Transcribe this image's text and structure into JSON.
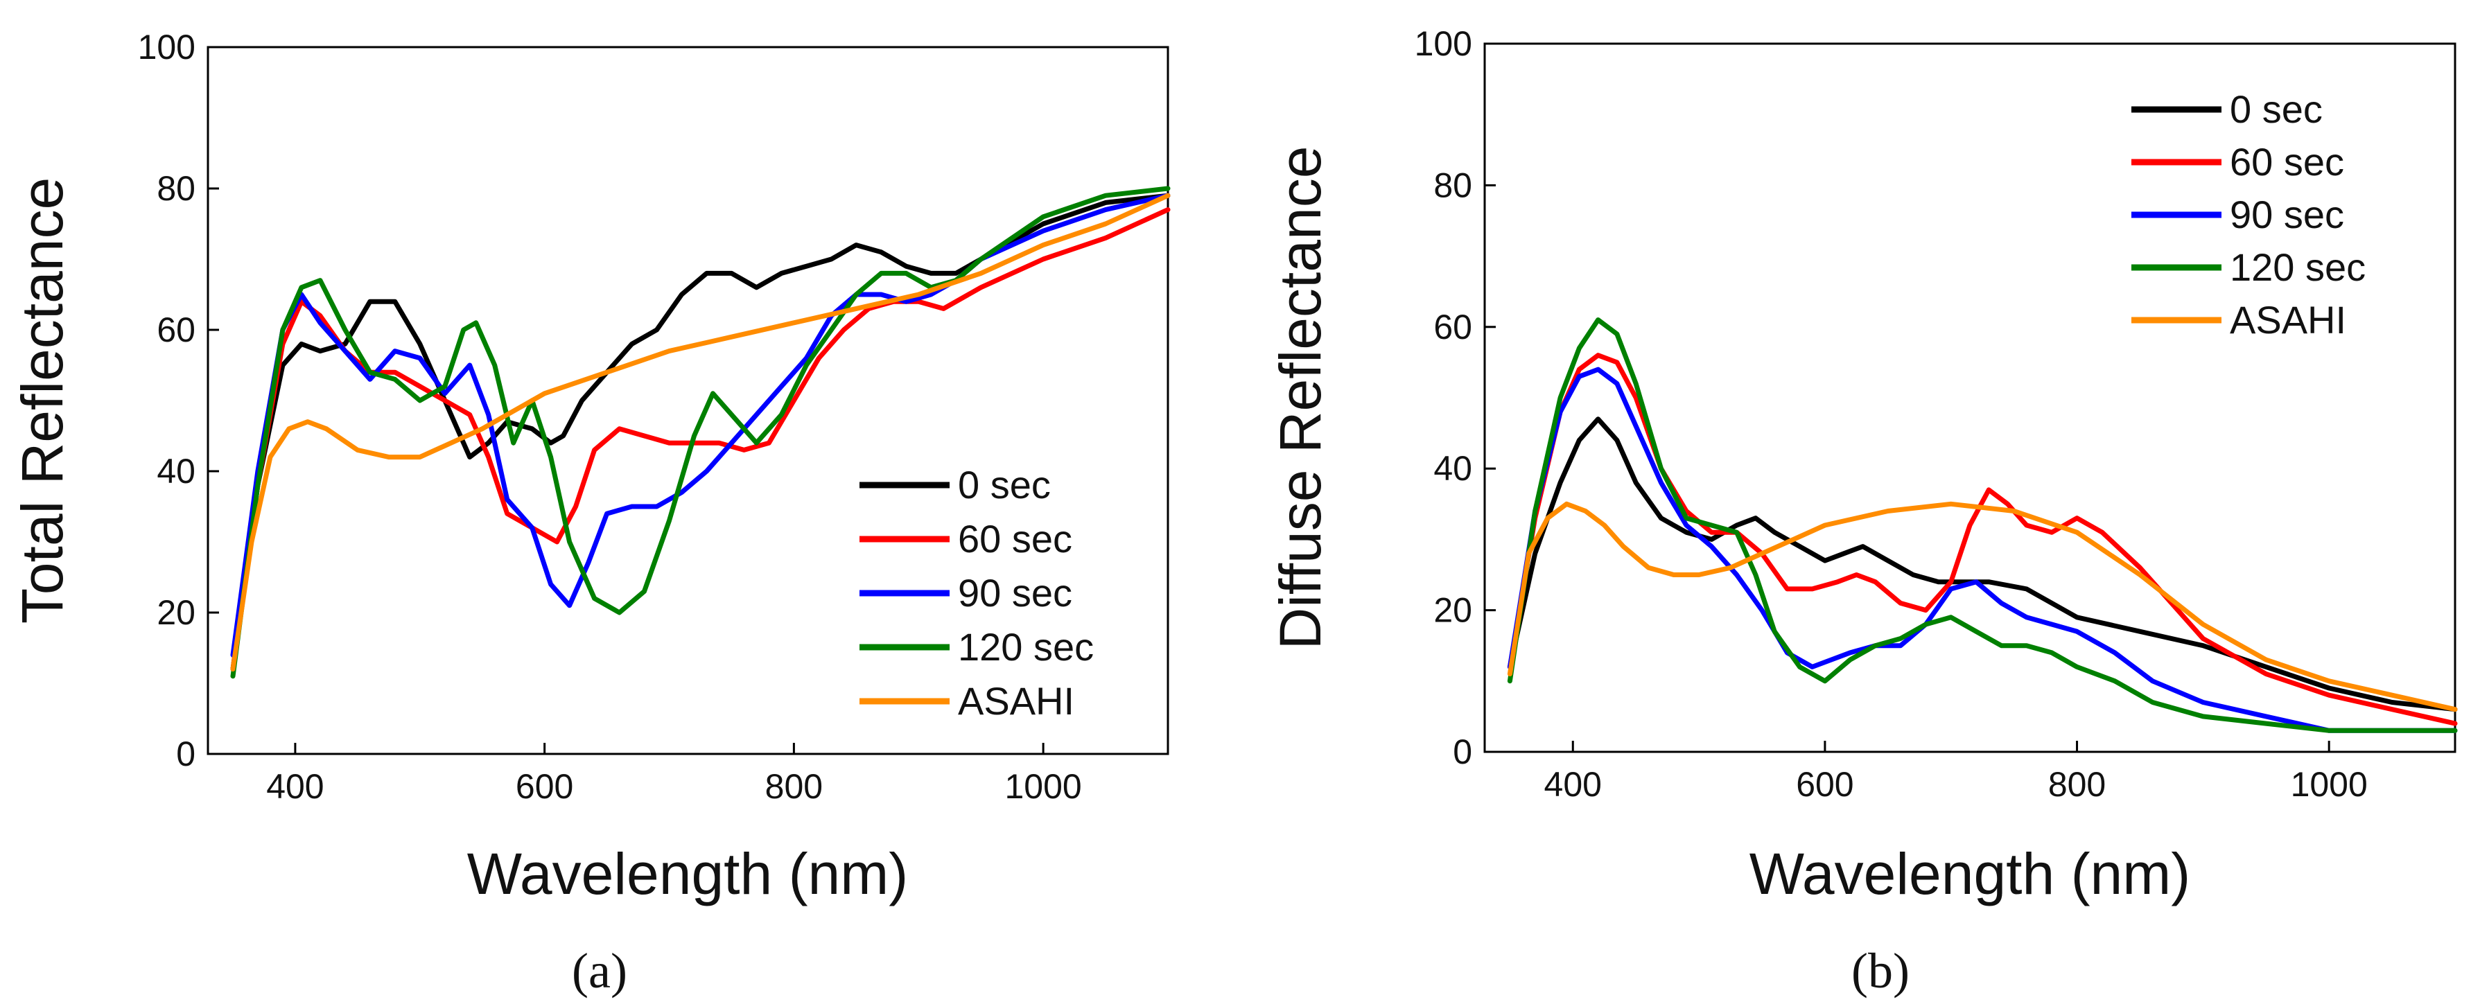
{
  "chart_data": [
    {
      "type": "line",
      "panel_label": "(a)",
      "title": "",
      "xlabel": "Wavelength (nm)",
      "ylabel": "Total Reflectance",
      "xlim": [
        330,
        1100
      ],
      "ylim": [
        0,
        100
      ],
      "xticks": [
        400,
        600,
        800,
        1000
      ],
      "yticks": [
        0,
        20,
        40,
        60,
        80,
        100
      ],
      "grid": false,
      "legend_position": "bottom-right",
      "series": [
        {
          "name": "0 sec",
          "color": "#000000",
          "x": [
            350,
            370,
            390,
            405,
            420,
            440,
            460,
            480,
            500,
            520,
            540,
            555,
            570,
            590,
            605,
            615,
            630,
            650,
            670,
            690,
            710,
            730,
            750,
            770,
            790,
            810,
            830,
            850,
            870,
            890,
            910,
            930,
            950,
            1000,
            1050,
            1100
          ],
          "y": [
            12,
            38,
            55,
            58,
            57,
            58,
            64,
            64,
            58,
            50,
            42,
            44,
            47,
            46,
            44,
            45,
            50,
            54,
            58,
            60,
            65,
            68,
            68,
            66,
            68,
            69,
            70,
            72,
            71,
            69,
            68,
            68,
            70,
            75,
            78,
            79
          ]
        },
        {
          "name": "60 sec",
          "color": "#ff0000",
          "x": [
            350,
            370,
            390,
            405,
            420,
            440,
            460,
            480,
            500,
            520,
            540,
            555,
            570,
            590,
            610,
            625,
            640,
            660,
            680,
            700,
            720,
            740,
            760,
            780,
            800,
            820,
            840,
            860,
            880,
            900,
            920,
            950,
            1000,
            1050,
            1100
          ],
          "y": [
            12,
            38,
            58,
            64,
            62,
            57,
            54,
            54,
            52,
            50,
            48,
            42,
            34,
            32,
            30,
            35,
            43,
            46,
            45,
            44,
            44,
            44,
            43,
            44,
            50,
            56,
            60,
            63,
            64,
            64,
            63,
            66,
            70,
            73,
            77
          ]
        },
        {
          "name": "90 sec",
          "color": "#0000ff",
          "x": [
            350,
            370,
            390,
            405,
            420,
            440,
            460,
            480,
            500,
            520,
            540,
            555,
            570,
            590,
            605,
            620,
            635,
            650,
            670,
            690,
            710,
            730,
            750,
            770,
            790,
            810,
            830,
            850,
            870,
            890,
            910,
            930,
            950,
            1000,
            1050,
            1100
          ],
          "y": [
            14,
            40,
            60,
            65,
            61,
            57,
            53,
            57,
            56,
            51,
            55,
            48,
            36,
            32,
            24,
            21,
            27,
            34,
            35,
            35,
            37,
            40,
            44,
            48,
            52,
            56,
            62,
            65,
            65,
            64,
            65,
            67,
            70,
            74,
            77,
            79
          ]
        },
        {
          "name": "120 sec",
          "color": "#008000",
          "x": [
            350,
            370,
            390,
            405,
            420,
            440,
            460,
            480,
            500,
            520,
            535,
            545,
            560,
            575,
            590,
            605,
            620,
            640,
            660,
            680,
            700,
            720,
            735,
            750,
            770,
            790,
            810,
            830,
            850,
            870,
            890,
            910,
            930,
            950,
            1000,
            1050,
            1100
          ],
          "y": [
            11,
            38,
            60,
            66,
            67,
            60,
            54,
            53,
            50,
            52,
            60,
            61,
            55,
            44,
            50,
            42,
            30,
            22,
            20,
            23,
            33,
            45,
            51,
            48,
            44,
            48,
            55,
            60,
            65,
            68,
            68,
            66,
            67,
            70,
            76,
            79,
            80
          ]
        },
        {
          "name": "ASAHI",
          "color": "#ff8c00",
          "x": [
            350,
            365,
            380,
            395,
            410,
            425,
            450,
            475,
            500,
            550,
            600,
            650,
            700,
            750,
            800,
            850,
            900,
            950,
            1000,
            1050,
            1100
          ],
          "y": [
            12,
            30,
            42,
            46,
            47,
            46,
            43,
            42,
            42,
            46,
            51,
            54,
            57,
            59,
            61,
            63,
            65,
            68,
            72,
            75,
            79
          ]
        }
      ]
    },
    {
      "type": "line",
      "panel_label": "(b)",
      "title": "",
      "xlabel": "Wavelength (nm)",
      "ylabel": "Diffuse Reflectance",
      "xlim": [
        330,
        1100
      ],
      "ylim": [
        0,
        100
      ],
      "xticks": [
        400,
        600,
        800,
        1000
      ],
      "yticks": [
        0,
        20,
        40,
        60,
        80,
        100
      ],
      "grid": false,
      "legend_position": "top-right",
      "series": [
        {
          "name": "0 sec",
          "color": "#000000",
          "x": [
            350,
            370,
            390,
            405,
            420,
            435,
            450,
            470,
            490,
            510,
            530,
            545,
            560,
            580,
            600,
            615,
            630,
            650,
            670,
            690,
            710,
            730,
            760,
            800,
            850,
            900,
            950,
            1000,
            1050,
            1100
          ],
          "y": [
            12,
            28,
            38,
            44,
            47,
            44,
            38,
            33,
            31,
            30,
            32,
            33,
            31,
            29,
            27,
            28,
            29,
            27,
            25,
            24,
            24,
            24,
            23,
            19,
            17,
            15,
            12,
            9,
            7,
            6
          ]
        },
        {
          "name": "60 sec",
          "color": "#ff0000",
          "x": [
            350,
            370,
            390,
            405,
            420,
            435,
            450,
            470,
            490,
            510,
            530,
            550,
            570,
            590,
            610,
            625,
            640,
            660,
            680,
            700,
            715,
            730,
            745,
            760,
            780,
            800,
            820,
            850,
            900,
            950,
            1000,
            1050,
            1100
          ],
          "y": [
            12,
            33,
            48,
            54,
            56,
            55,
            50,
            40,
            34,
            31,
            31,
            28,
            23,
            23,
            24,
            25,
            24,
            21,
            20,
            24,
            32,
            37,
            35,
            32,
            31,
            33,
            31,
            26,
            16,
            11,
            8,
            6,
            4
          ]
        },
        {
          "name": "90 sec",
          "color": "#0000ff",
          "x": [
            350,
            370,
            390,
            405,
            420,
            435,
            450,
            470,
            490,
            510,
            530,
            550,
            570,
            590,
            605,
            620,
            640,
            660,
            680,
            700,
            720,
            740,
            760,
            780,
            800,
            830,
            860,
            900,
            950,
            1000,
            1050,
            1100
          ],
          "y": [
            12,
            34,
            48,
            53,
            54,
            52,
            46,
            38,
            32,
            29,
            25,
            20,
            14,
            12,
            13,
            14,
            15,
            15,
            18,
            23,
            24,
            21,
            19,
            18,
            17,
            14,
            10,
            7,
            5,
            3,
            3,
            3
          ]
        },
        {
          "name": "120 sec",
          "color": "#008000",
          "x": [
            350,
            370,
            390,
            405,
            420,
            435,
            450,
            470,
            490,
            510,
            530,
            545,
            560,
            580,
            600,
            620,
            640,
            660,
            680,
            700,
            720,
            740,
            760,
            780,
            800,
            830,
            860,
            900,
            950,
            1000,
            1050,
            1100
          ],
          "y": [
            10,
            34,
            50,
            57,
            61,
            59,
            52,
            40,
            33,
            32,
            31,
            25,
            17,
            12,
            10,
            13,
            15,
            16,
            18,
            19,
            17,
            15,
            15,
            14,
            12,
            10,
            7,
            5,
            4,
            3,
            3,
            3
          ]
        },
        {
          "name": "ASAHI",
          "color": "#ff8c00",
          "x": [
            350,
            365,
            380,
            395,
            410,
            425,
            440,
            460,
            480,
            500,
            525,
            550,
            575,
            600,
            650,
            700,
            750,
            800,
            850,
            900,
            950,
            1000,
            1050,
            1100
          ],
          "y": [
            11,
            28,
            33,
            35,
            34,
            32,
            29,
            26,
            25,
            25,
            26,
            28,
            30,
            32,
            34,
            35,
            34,
            31,
            25,
            18,
            13,
            10,
            8,
            6
          ]
        }
      ]
    }
  ]
}
